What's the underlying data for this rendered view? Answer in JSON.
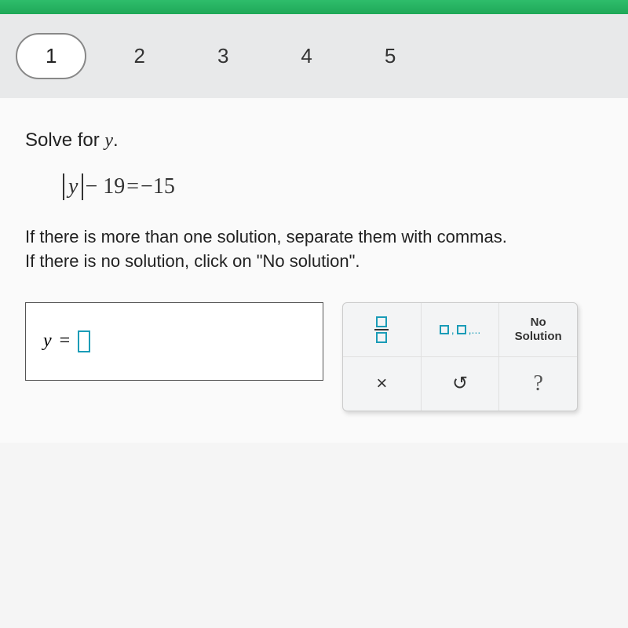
{
  "colors": {
    "topbar_start": "#2ebd6b",
    "topbar_end": "#1fa858",
    "nav_bg": "#e8e9ea",
    "pill_border": "#888888",
    "text": "#222222",
    "accent": "#1a9cb7",
    "toolbox_bg": "#f3f4f5",
    "toolbox_border": "#cccccc"
  },
  "nav": {
    "active": "1",
    "items": [
      "2",
      "3",
      "4",
      "5"
    ]
  },
  "prompt": {
    "prefix": "Solve for ",
    "variable": "y",
    "suffix": "."
  },
  "equation": {
    "abs_variable": "y",
    "lhs_rest": " − 19",
    "equals": " = ",
    "rhs": "−15"
  },
  "instructions": {
    "line1": "If there is more than one solution, separate them with commas.",
    "line2": "If there is no solution, click on \"No solution\"."
  },
  "answer": {
    "variable": "y",
    "equals": "=",
    "value": ""
  },
  "toolbox": {
    "no_solution_line1": "No",
    "no_solution_line2": "Solution",
    "list_ellipsis": ",...",
    "clear": "×",
    "undo": "↺",
    "help": "?"
  }
}
